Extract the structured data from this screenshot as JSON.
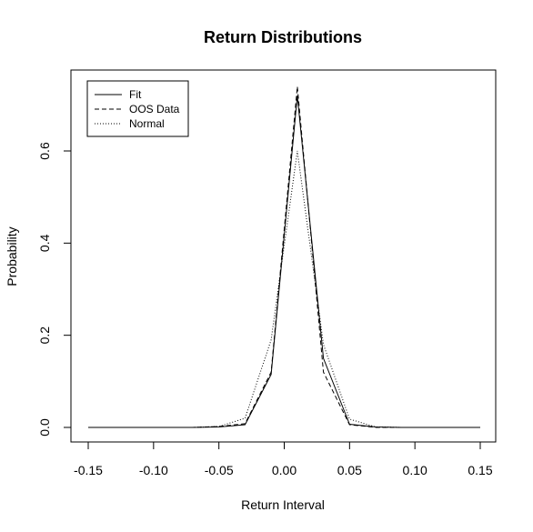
{
  "chart_data": {
    "type": "line",
    "title": "Return Distributions",
    "xlabel": "Return Interval",
    "ylabel": "Probability",
    "xlim": [
      -0.15,
      0.15
    ],
    "ylim": [
      0,
      0.75
    ],
    "xticks": [
      -0.15,
      -0.1,
      -0.05,
      0.0,
      0.05,
      0.1,
      0.15
    ],
    "xtick_labels": [
      "-0.15",
      "-0.10",
      "-0.05",
      "0.00",
      "0.05",
      "0.10",
      "0.15"
    ],
    "yticks": [
      0.0,
      0.2,
      0.4,
      0.6
    ],
    "ytick_labels": [
      "0.0",
      "0.2",
      "0.4",
      "0.6"
    ],
    "grid": false,
    "legend_position": "top-left",
    "x": [
      -0.15,
      -0.13,
      -0.11,
      -0.09,
      -0.07,
      -0.05,
      -0.03,
      -0.01,
      0.01,
      0.03,
      0.05,
      0.07,
      0.09,
      0.11,
      0.13,
      0.15
    ],
    "series": [
      {
        "name": "Fit",
        "style": "solid",
        "values": [
          0,
          0,
          0,
          0,
          0,
          0.001,
          0.006,
          0.115,
          0.72,
          0.15,
          0.007,
          0.001,
          0,
          0,
          0,
          0
        ]
      },
      {
        "name": "OOS Data",
        "style": "dashed",
        "values": [
          0,
          0,
          0,
          0,
          0,
          0.002,
          0.008,
          0.12,
          0.74,
          0.12,
          0.006,
          0,
          0,
          0,
          0,
          0
        ]
      },
      {
        "name": "Normal",
        "style": "dotted",
        "values": [
          0,
          0,
          0,
          0,
          0,
          0.002,
          0.02,
          0.19,
          0.6,
          0.18,
          0.018,
          0.001,
          0,
          0,
          0,
          0
        ]
      }
    ]
  }
}
